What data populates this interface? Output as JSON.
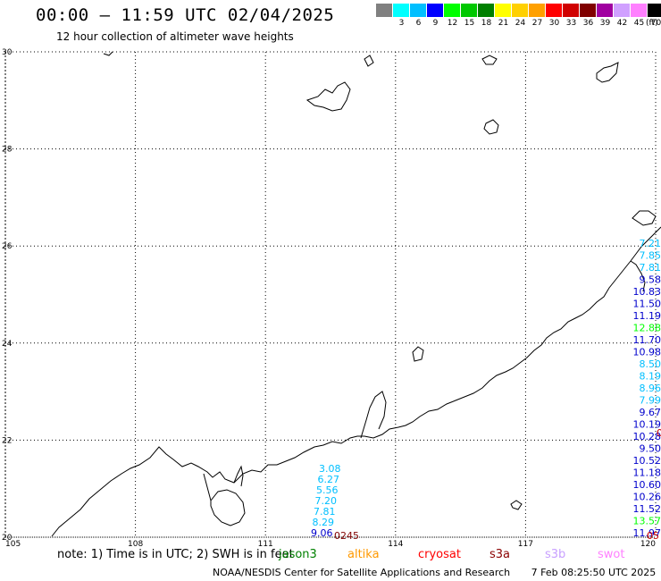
{
  "header": {
    "title": "00:00 – 11:59 UTC 02/04/2025",
    "subtitle": "12 hour collection of altimeter wave heights"
  },
  "colorbar": {
    "colors": [
      "#808080",
      "#00ffff",
      "#00bfff",
      "#0000ff",
      "#00ff00",
      "#00c800",
      "#008000",
      "#ffff00",
      "#ffd000",
      "#ffa000",
      "#ff0000",
      "#d00000",
      "#800000",
      "#a000a0",
      "#d0a0ff",
      "#ff80ff",
      "#000000"
    ],
    "labels": [
      "",
      "3",
      "6",
      "9",
      "12",
      "15",
      "18",
      "21",
      "24",
      "27",
      "30",
      "33",
      "36",
      "39",
      "42",
      "45",
      "70"
    ],
    "unit": "(ft)"
  },
  "map": {
    "lon_ticks": [
      "105",
      "108",
      "111",
      "114",
      "117",
      "120"
    ],
    "lat_ticks": [
      "30",
      "28",
      "26",
      "24",
      "22",
      "20"
    ],
    "lon_range": [
      105,
      120
    ],
    "lat_range": [
      20,
      30
    ]
  },
  "tracks": [
    {
      "name": "left-track",
      "points": [
        {
          "v": "3.08",
          "color": "#00bfff"
        },
        {
          "v": "6.27",
          "color": "#00bfff"
        },
        {
          "v": "5.56",
          "color": "#00bfff"
        },
        {
          "v": "7.20",
          "color": "#00bfff"
        },
        {
          "v": "7.81",
          "color": "#00bfff"
        },
        {
          "v": "8.29",
          "color": "#00bfff"
        },
        {
          "v": "9.06",
          "color": "#0000cc"
        }
      ]
    },
    {
      "name": "right-track",
      "points": [
        {
          "v": "7.21",
          "color": "#00bfff"
        },
        {
          "v": "7.85",
          "color": "#00bfff"
        },
        {
          "v": "7.81",
          "color": "#00bfff"
        },
        {
          "v": "9.58",
          "color": "#0000cc"
        },
        {
          "v": "10.83",
          "color": "#0000cc"
        },
        {
          "v": "11.50",
          "color": "#0000cc"
        },
        {
          "v": "11.19",
          "color": "#0000cc"
        },
        {
          "v": "12.88",
          "color": "#00ff00"
        },
        {
          "v": "11.70",
          "color": "#0000cc"
        },
        {
          "v": "10.98",
          "color": "#0000cc"
        },
        {
          "v": "8.50",
          "color": "#00bfff"
        },
        {
          "v": "8.19",
          "color": "#00bfff"
        },
        {
          "v": "8.96",
          "color": "#00bfff"
        },
        {
          "v": "7.99",
          "color": "#00bfff"
        },
        {
          "v": "9.67",
          "color": "#0000cc"
        },
        {
          "v": "10.19",
          "color": "#0000cc"
        },
        {
          "v": "10.28",
          "color": "#0000cc"
        },
        {
          "v": "9.50",
          "color": "#0000cc"
        },
        {
          "v": "10.52",
          "color": "#0000cc"
        },
        {
          "v": "11.18",
          "color": "#0000cc"
        },
        {
          "v": "10.60",
          "color": "#0000cc"
        },
        {
          "v": "10.26",
          "color": "#0000cc"
        },
        {
          "v": "11.52",
          "color": "#0000cc"
        },
        {
          "v": "13.57",
          "color": "#00ff00"
        },
        {
          "v": "11.97",
          "color": "#0000cc"
        }
      ]
    }
  ],
  "time_labels": [
    {
      "text": "0245",
      "color": "#800000"
    },
    {
      "text": "0",
      "color": "#cc0000"
    },
    {
      "text": "05",
      "color": "#cc0000"
    }
  ],
  "footer": {
    "note": "note:  1) Time is in UTC; 2) SWH is in feet",
    "missions": [
      {
        "name": "jason3",
        "color": "#008000"
      },
      {
        "name": "altika",
        "color": "#ff9900"
      },
      {
        "name": "cryosat",
        "color": "#ff0000"
      },
      {
        "name": "s3a",
        "color": "#8b0000"
      },
      {
        "name": "s3b",
        "color": "#c8a0ff"
      },
      {
        "name": "swot",
        "color": "#ff80ff"
      }
    ],
    "credit": "NOAA/NESDIS Center for Satellite Applications and Research",
    "timestamp": "7 Feb 08:25:50 UTC 2025"
  }
}
